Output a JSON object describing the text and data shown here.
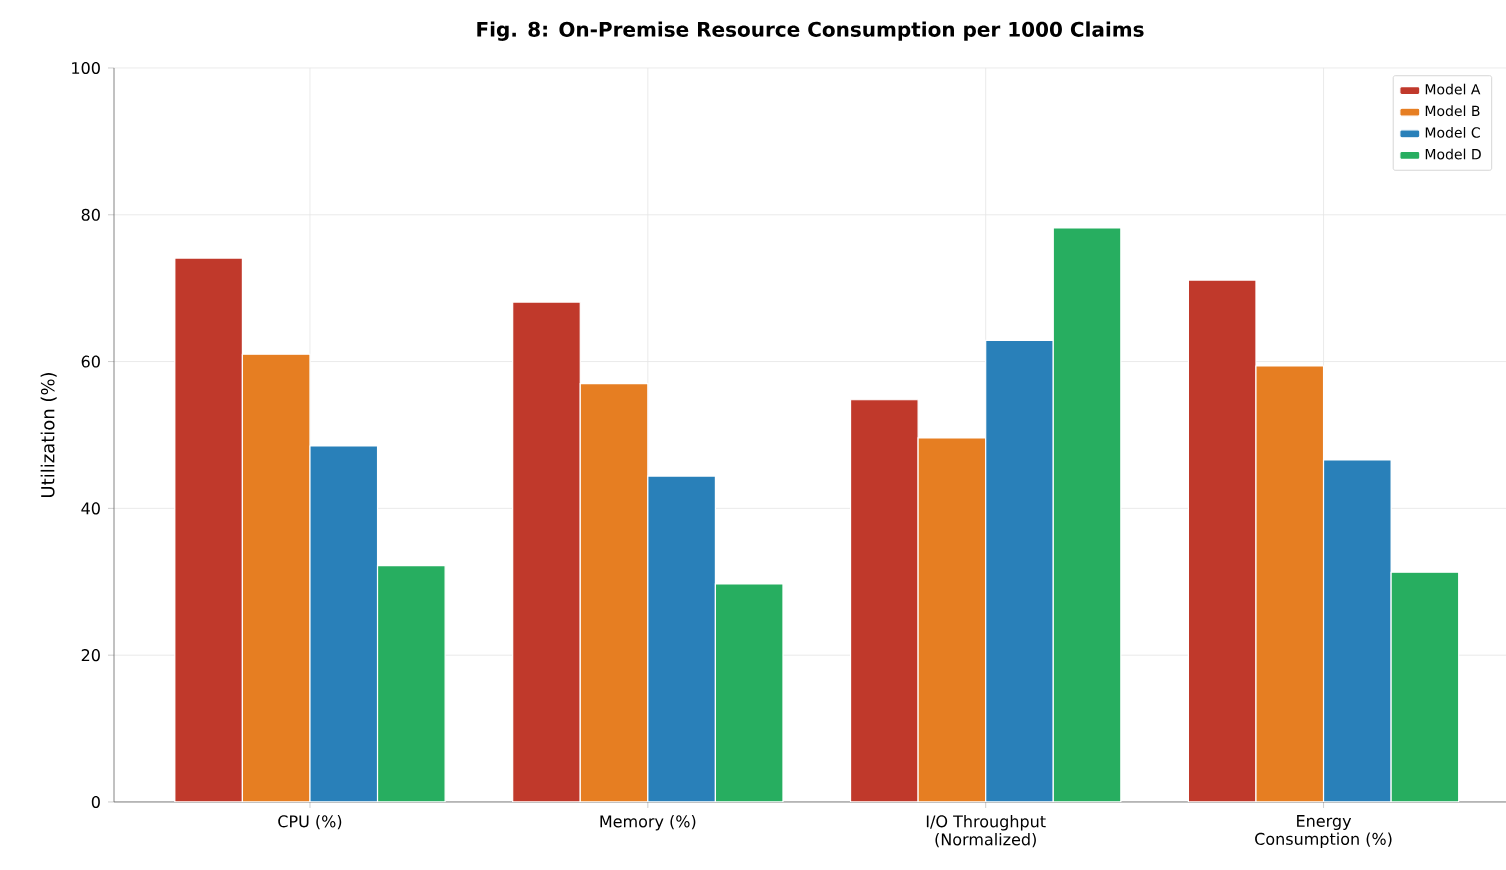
{
  "chart_data": {
    "type": "bar",
    "title": "Fig. 8: On-Premise Resource Consumption per 1000 Claims",
    "ylabel": "Utilization (%)",
    "categories": [
      "CPU (%)",
      "Memory (%)",
      "I/O Throughput\n(Normalized)",
      "Energy\nConsumption (%)"
    ],
    "series": [
      {
        "name": "Model A",
        "color": "#c0392b",
        "values": [
          74.1,
          68.1,
          54.8,
          71.1
        ]
      },
      {
        "name": "Model B",
        "color": "#e67e22",
        "values": [
          61.0,
          57.0,
          49.6,
          59.4
        ]
      },
      {
        "name": "Model C",
        "color": "#2980b9",
        "values": [
          48.5,
          44.4,
          62.9,
          46.6
        ]
      },
      {
        "name": "Model D",
        "color": "#27ae60",
        "values": [
          32.2,
          29.7,
          78.2,
          31.3
        ]
      }
    ],
    "ylim": [
      0,
      100
    ],
    "yticks": [
      0,
      20,
      40,
      60,
      80,
      100
    ],
    "grid": true,
    "legend": "top right"
  }
}
